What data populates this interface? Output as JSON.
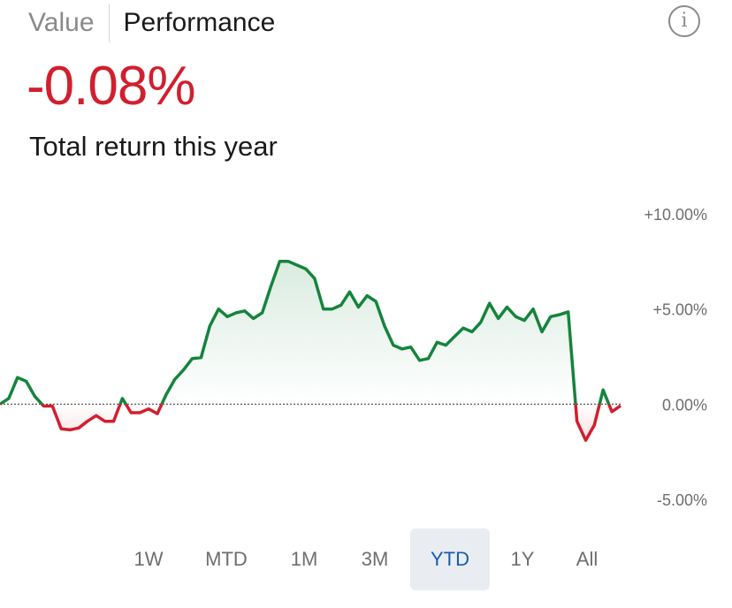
{
  "tabs": [
    {
      "label": "Value",
      "active": false
    },
    {
      "label": "Performance",
      "active": true
    }
  ],
  "info_icon": {
    "icon": "info-icon",
    "glyph": "i"
  },
  "summary": {
    "return_value": "-0.08%",
    "return_label": "Total return this year"
  },
  "colors": {
    "positive": "#15843c",
    "negative": "#d11f2e",
    "active_range_bg": "#e9ecf1",
    "active_range_text": "#1a5ca8"
  },
  "ranges": [
    {
      "label": "1W",
      "active": false
    },
    {
      "label": "MTD",
      "active": false
    },
    {
      "label": "1M",
      "active": false
    },
    {
      "label": "3M",
      "active": false
    },
    {
      "label": "YTD",
      "active": true
    },
    {
      "label": "1Y",
      "active": false
    },
    {
      "label": "All",
      "active": false
    }
  ],
  "chart_data": {
    "type": "area",
    "title": "",
    "xlabel": "",
    "ylabel": "",
    "ylim": [
      -5,
      10
    ],
    "y_ticks": [
      "+10.00%",
      "+5.00%",
      "0.00%",
      "-5.00%"
    ],
    "y_tick_values": [
      10,
      5,
      0,
      -5
    ],
    "baseline": 0,
    "series": [
      {
        "values": [
          0.0,
          0.3,
          1.4,
          1.2,
          0.4,
          -0.1,
          -0.1,
          -1.3,
          -1.35,
          -1.25,
          -0.9,
          -0.6,
          -0.9,
          -0.9,
          0.3,
          -0.45,
          -0.45,
          -0.25,
          -0.5,
          0.5,
          1.3,
          1.8,
          2.4,
          2.45,
          4.1,
          5.0,
          4.6,
          4.8,
          4.9,
          4.5,
          4.8,
          6.2,
          7.5,
          7.5,
          7.3,
          7.1,
          6.6,
          5.0,
          5.0,
          5.2,
          5.9,
          5.1,
          5.7,
          5.4,
          4.1,
          3.1,
          2.9,
          3.0,
          2.3,
          2.4,
          3.25,
          3.1,
          3.55,
          4.0,
          3.8,
          4.3,
          5.3,
          4.5,
          5.1,
          4.6,
          4.4,
          5.0,
          3.8,
          4.6,
          4.7,
          4.85,
          -0.9,
          -1.9,
          -1.1,
          0.75,
          -0.4,
          -0.08
        ]
      }
    ]
  }
}
